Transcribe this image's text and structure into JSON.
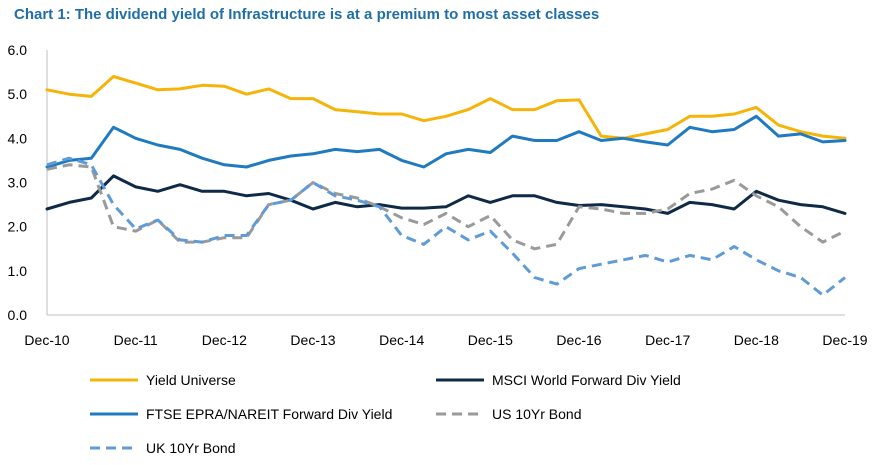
{
  "chart_data": {
    "type": "line",
    "title": "Chart 1: The dividend yield of Infrastructure is at a premium to most asset classes",
    "xlabel": "",
    "ylabel": "",
    "ylim": [
      0,
      6
    ],
    "yticks": [
      "0.0",
      "1.0",
      "2.0",
      "3.0",
      "4.0",
      "5.0",
      "6.0"
    ],
    "xticks": [
      "Dec-10",
      "Dec-11",
      "Dec-12",
      "Dec-13",
      "Dec-14",
      "Dec-15",
      "Dec-16",
      "Dec-17",
      "Dec-18",
      "Dec-19"
    ],
    "x": [
      "Dec-10",
      "Mar-11",
      "Jun-11",
      "Sep-11",
      "Dec-11",
      "Mar-12",
      "Jun-12",
      "Sep-12",
      "Dec-12",
      "Mar-13",
      "Jun-13",
      "Sep-13",
      "Dec-13",
      "Mar-14",
      "Jun-14",
      "Sep-14",
      "Dec-14",
      "Mar-15",
      "Jun-15",
      "Sep-15",
      "Dec-15",
      "Mar-16",
      "Jun-16",
      "Sep-16",
      "Dec-16",
      "Mar-17",
      "Jun-17",
      "Sep-17",
      "Dec-17",
      "Mar-18",
      "Jun-18",
      "Sep-18",
      "Dec-18",
      "Mar-19",
      "Jun-19",
      "Sep-19",
      "Dec-19"
    ],
    "grid": false,
    "legend_position": "bottom",
    "series": [
      {
        "name": "Yield Universe",
        "color": "#f5b40a",
        "dash": "solid",
        "values": [
          5.1,
          5.0,
          4.95,
          5.4,
          5.25,
          5.1,
          5.12,
          5.2,
          5.18,
          5.0,
          5.12,
          4.9,
          4.9,
          4.65,
          4.6,
          4.55,
          4.55,
          4.4,
          4.5,
          4.65,
          4.9,
          4.65,
          4.65,
          4.85,
          4.87,
          4.05,
          4.0,
          4.1,
          4.2,
          4.5,
          4.5,
          4.55,
          4.7,
          4.3,
          4.15,
          4.05,
          4.0
        ]
      },
      {
        "name": "MSCI World Forward Div Yield",
        "color": "#0e2a47",
        "dash": "solid",
        "values": [
          2.4,
          2.55,
          2.65,
          3.15,
          2.9,
          2.8,
          2.95,
          2.8,
          2.8,
          2.7,
          2.75,
          2.6,
          2.4,
          2.55,
          2.45,
          2.5,
          2.42,
          2.42,
          2.45,
          2.7,
          2.55,
          2.7,
          2.7,
          2.55,
          2.48,
          2.5,
          2.45,
          2.4,
          2.3,
          2.55,
          2.5,
          2.4,
          2.8,
          2.6,
          2.5,
          2.45,
          2.3
        ]
      },
      {
        "name": "FTSE EPRA/NAREIT Forward Div Yield",
        "color": "#1f7abf",
        "dash": "solid",
        "values": [
          3.35,
          3.5,
          3.55,
          4.25,
          4.0,
          3.85,
          3.75,
          3.55,
          3.4,
          3.35,
          3.5,
          3.6,
          3.65,
          3.75,
          3.7,
          3.75,
          3.5,
          3.35,
          3.65,
          3.75,
          3.68,
          4.05,
          3.95,
          3.95,
          4.15,
          3.95,
          4.0,
          3.92,
          3.85,
          4.25,
          4.15,
          4.2,
          4.5,
          4.05,
          4.1,
          3.92,
          3.95
        ]
      },
      {
        "name": "US 10Yr Bond",
        "color": "#9a9a9a",
        "dash": "dashed",
        "values": [
          3.3,
          3.4,
          3.35,
          2.0,
          1.9,
          2.15,
          1.65,
          1.65,
          1.75,
          1.75,
          2.5,
          2.6,
          3.0,
          2.75,
          2.65,
          2.45,
          2.2,
          2.05,
          2.3,
          2.0,
          2.25,
          1.7,
          1.5,
          1.6,
          2.45,
          2.4,
          2.3,
          2.3,
          2.4,
          2.75,
          2.85,
          3.05,
          2.7,
          2.45,
          2.0,
          1.65,
          1.9
        ]
      },
      {
        "name": "UK 10Yr Bond",
        "color": "#5f9bd6",
        "dash": "dashed",
        "values": [
          3.4,
          3.55,
          3.4,
          2.5,
          1.95,
          2.15,
          1.7,
          1.65,
          1.8,
          1.8,
          2.5,
          2.6,
          3.0,
          2.7,
          2.6,
          2.45,
          1.8,
          1.6,
          2.0,
          1.7,
          1.9,
          1.4,
          0.85,
          0.7,
          1.05,
          1.15,
          1.25,
          1.35,
          1.2,
          1.35,
          1.25,
          1.55,
          1.25,
          1.0,
          0.85,
          0.45,
          0.85
        ]
      }
    ]
  }
}
